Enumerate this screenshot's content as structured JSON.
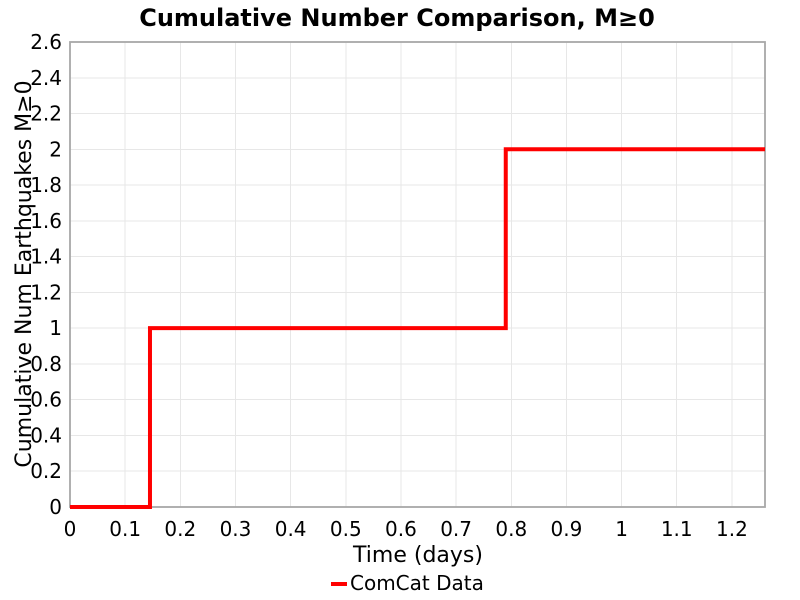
{
  "figure": {
    "background_color": "#ffffff"
  },
  "chart_data": {
    "type": "line",
    "subtype": "step-cumulative",
    "title": "Cumulative Number Comparison, M≥0",
    "xlabel": "Time (days)",
    "ylabel": "Cumulative Num Earthquakes M≥0",
    "xlim": [
      0,
      1.26
    ],
    "ylim": [
      0,
      2.6
    ],
    "xticks": [
      0,
      0.1,
      0.2,
      0.3,
      0.4,
      0.5,
      0.6,
      0.7,
      0.8,
      0.9,
      1,
      1.1,
      1.2
    ],
    "yticks": [
      0,
      0.2,
      0.4,
      0.6,
      0.8,
      1,
      1.2,
      1.4,
      1.6,
      1.8,
      2,
      2.2,
      2.4,
      2.6
    ],
    "grid": true,
    "grid_color": "#e7e7e7",
    "axis_color": "#a8a8a8",
    "text_color": "#000000",
    "legend": {
      "position": "bottom-center",
      "frame": false,
      "entries": [
        {
          "label": "ComCat Data",
          "color": "#ff0000",
          "marker": "line"
        }
      ]
    },
    "series": [
      {
        "name": "ComCat Data",
        "color": "#ff0000",
        "line_width": 4,
        "step": "post",
        "x": [
          0,
          0.145,
          0.79,
          1.26
        ],
        "y": [
          0,
          1,
          2,
          2
        ]
      }
    ]
  }
}
